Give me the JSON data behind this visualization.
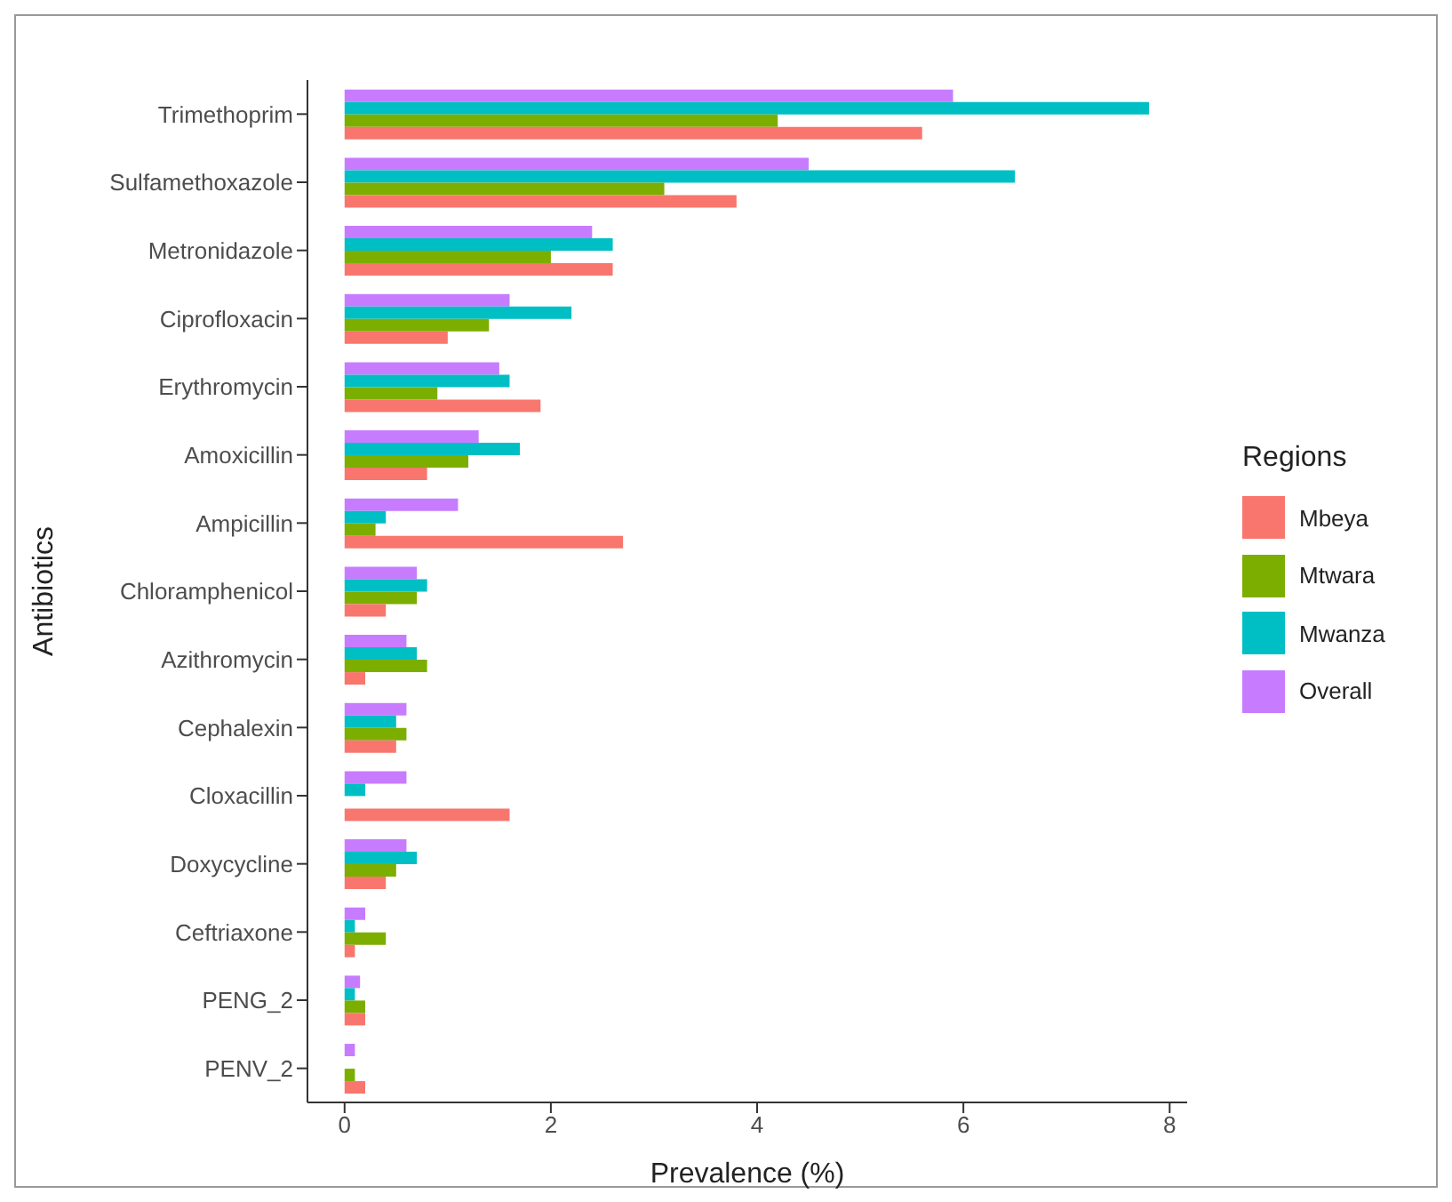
{
  "chart_data": {
    "type": "bar",
    "orientation": "horizontal",
    "xlabel": "Prevalence (%)",
    "ylabel": "Antibiotics",
    "legend_title": "Regions",
    "legend": "right",
    "categories": [
      "Trimethoprim",
      "Sulfamethoxazole",
      "Metronidazole",
      "Ciprofloxacin",
      "Erythromycin",
      "Amoxicillin",
      "Ampicillin",
      "Chloramphenicol",
      "Azithromycin",
      "Cephalexin",
      "Cloxacillin",
      "Doxycycline",
      "Ceftriaxone",
      "PENG_2",
      "PENV_2"
    ],
    "series": [
      {
        "name": "Mbeya",
        "color": "#f8766d",
        "values": [
          5.6,
          3.8,
          2.6,
          1.0,
          1.9,
          0.8,
          2.7,
          0.4,
          0.2,
          0.5,
          1.6,
          0.4,
          0.1,
          0.2,
          0.2
        ]
      },
      {
        "name": "Mtwara",
        "color": "#7cae00",
        "values": [
          4.2,
          3.1,
          2.0,
          1.4,
          0.9,
          1.2,
          0.3,
          0.7,
          0.8,
          0.6,
          0,
          0.5,
          0.4,
          0.2,
          0.1
        ]
      },
      {
        "name": "Mwanza",
        "color": "#00bfc4",
        "values": [
          7.8,
          6.5,
          2.6,
          2.2,
          1.6,
          1.7,
          0.4,
          0.8,
          0.7,
          0.5,
          0.2,
          0.7,
          0.1,
          0.1,
          0
        ]
      },
      {
        "name": "Overall",
        "color": "#c77cff",
        "values": [
          5.9,
          4.5,
          2.4,
          1.6,
          1.5,
          1.3,
          1.1,
          0.7,
          0.6,
          0.6,
          0.6,
          0.6,
          0.2,
          0.15,
          0.1
        ]
      }
    ],
    "xlim": [
      -0.36,
      8.17
    ],
    "xticks": [
      0,
      2,
      4,
      6,
      8
    ],
    "grid": false
  }
}
